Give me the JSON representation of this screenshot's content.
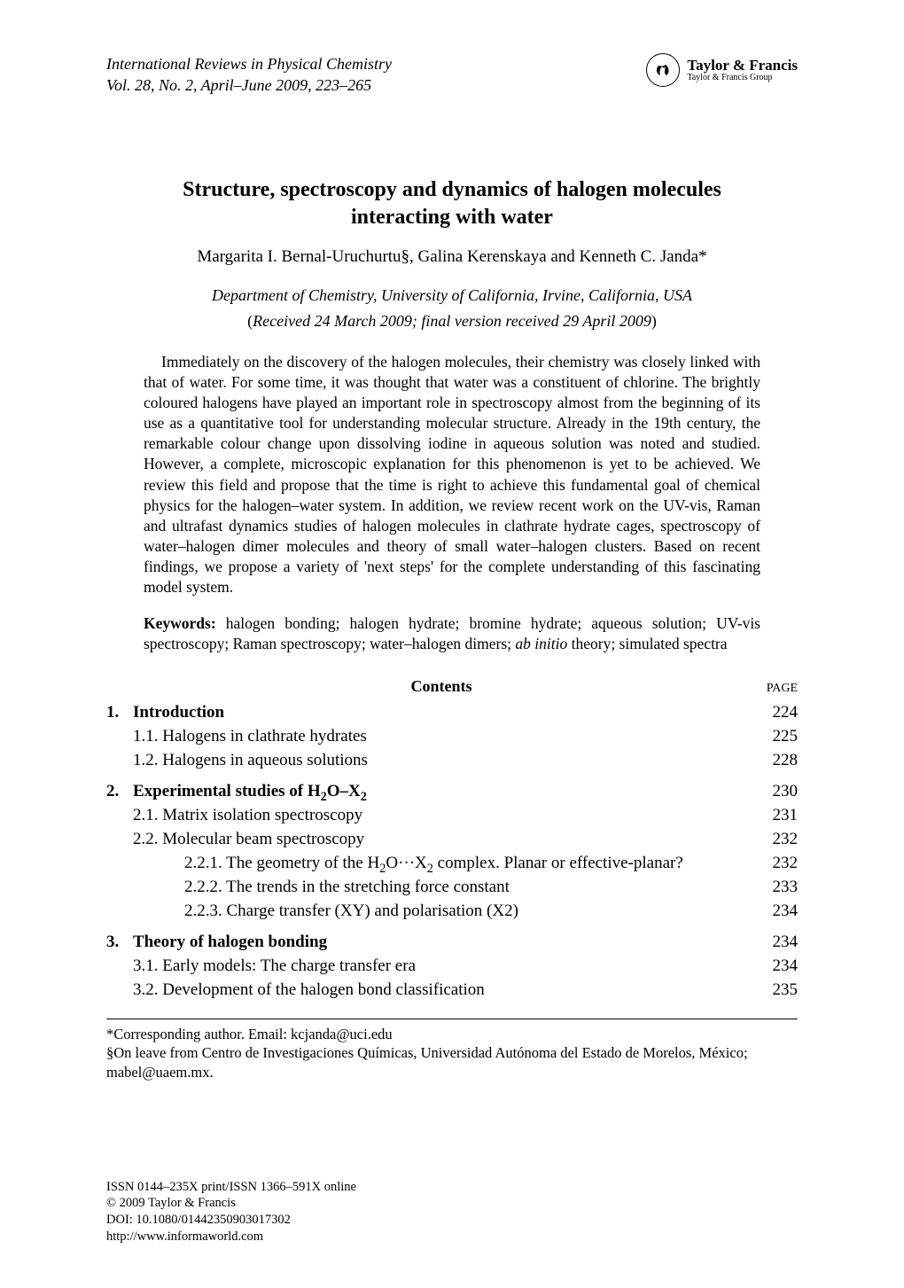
{
  "colors": {
    "text": "#000000",
    "background": "#ffffff",
    "rule": "#000000"
  },
  "typography": {
    "body_family": "Times New Roman",
    "title_size_pt": 24,
    "body_size_pt": 18,
    "abstract_size_pt": 17.5,
    "footnote_size_pt": 16.5,
    "footer_size_pt": 14.5
  },
  "header": {
    "journal_name": "International Reviews in Physical Chemistry",
    "issue_line": "Vol. 28, No. 2, April–June 2009, 223–265",
    "publisher_top": "Taylor & Francis",
    "publisher_bottom": "Taylor & Francis Group"
  },
  "article": {
    "title_line1": "Structure, spectroscopy and dynamics of halogen molecules",
    "title_line2": "interacting with water",
    "authors_html": "Margarita I. Bernal-Uruchurtu§, Galina Kerenskaya and Kenneth C. Janda*",
    "affiliation": "Department of Chemistry, University of California, Irvine, California, USA",
    "received_open": "(",
    "received_text": "Received 24 March 2009; final version received 29 April 2009",
    "received_close": ")"
  },
  "abstract": {
    "p1": "Immediately on the discovery of the halogen molecules, their chemistry was closely linked with that of water. For some time, it was thought that water was a constituent of chlorine. The brightly coloured halogens have played an important role in spectroscopy almost from the beginning of its use as a quantitative tool for understanding molecular structure. Already in the 19th century, the remarkable colour change upon dissolving iodine in aqueous solution was noted and studied. However, a complete, microscopic explanation for this phenomenon is yet to be achieved. We review this field and propose that the time is right to achieve this fundamental goal of chemical physics for the halogen–water system. In addition, we review recent work on the UV-vis, Raman and ultrafast dynamics studies of halogen molecules in clathrate hydrate cages, spectroscopy of water–halogen dimer molecules and theory of small water–halogen clusters. Based on recent findings, we propose a variety of 'next steps' for the complete understanding of this fascinating model system."
  },
  "keywords": {
    "label": "Keywords:",
    "text_part1": " halogen bonding; halogen hydrate; bromine hydrate; aqueous solution; UV-vis spectroscopy; Raman spectroscopy; water–halogen dimers; ",
    "ital": "ab initio",
    "text_part2": " theory; simulated spectra"
  },
  "contents": {
    "heading": "Contents",
    "page_label": "PAGE",
    "sections": [
      {
        "num": "1.",
        "title": "Introduction",
        "page": "224",
        "subs": [
          {
            "label": "1.1.  Halogens in clathrate hydrates",
            "page": "225"
          },
          {
            "label": "1.2.  Halogens in aqueous solutions",
            "page": "228"
          }
        ]
      },
      {
        "num": "2.",
        "title_html": "Experimental studies of H<span class=\"sub\">2</span>O–X<span class=\"sub\">2</span>",
        "page": "230",
        "subs": [
          {
            "label": "2.1.  Matrix isolation spectroscopy",
            "page": "231"
          },
          {
            "label": "2.2.  Molecular beam spectroscopy",
            "page": "232",
            "subs": [
              {
                "label_html": "2.2.1.  The geometry of the H<span class=\"sub\">2</span>O···X<span class=\"sub\">2</span> complex. Planar or effective-planar?",
                "page": "232"
              },
              {
                "label": "2.2.2.  The trends in the stretching force constant",
                "page": "233"
              },
              {
                "label": "2.2.3.  Charge transfer (XY) and polarisation (X2)",
                "page": "234"
              }
            ]
          }
        ]
      },
      {
        "num": "3.",
        "title": "Theory of halogen bonding",
        "page": "234",
        "subs": [
          {
            "label": "3.1.  Early models: The charge transfer era",
            "page": "234"
          },
          {
            "label": "3.2.  Development of the halogen bond classification",
            "page": "235"
          }
        ]
      }
    ]
  },
  "footnotes": {
    "f1": "*Corresponding author. Email: kcjanda@uci.edu",
    "f2": "§On leave from Centro de Investigaciones Químicas, Universidad Autónoma del Estado de Morelos, México; mabel@uaem.mx."
  },
  "footer": {
    "l1": "ISSN 0144–235X print/ISSN 1366–591X online",
    "l2": "© 2009 Taylor & Francis",
    "l3": "DOI: 10.1080/01442350903017302",
    "l4": "http://www.informaworld.com"
  }
}
